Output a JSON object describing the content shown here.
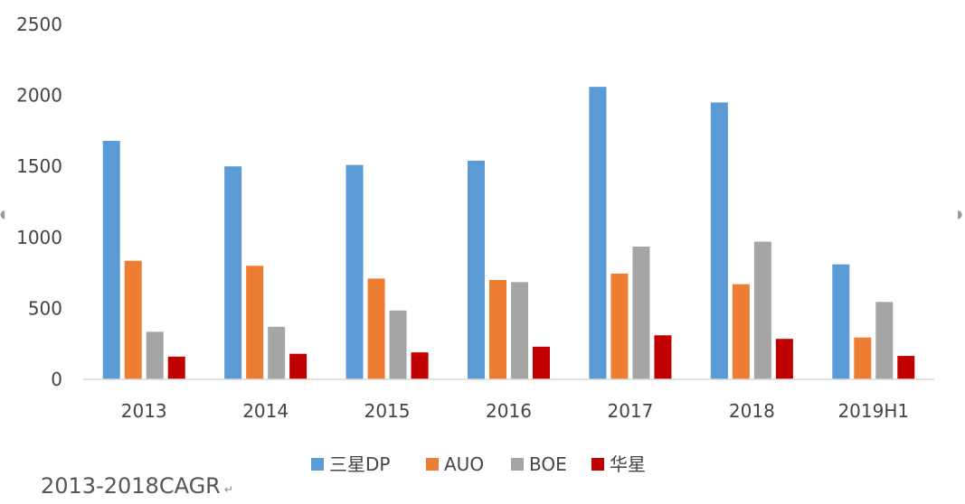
{
  "chart_data": {
    "type": "bar",
    "categories": [
      "2013",
      "2014",
      "2015",
      "2016",
      "2017",
      "2018",
      "2019H1"
    ],
    "series": [
      {
        "name": "三星DP",
        "color": "#5b9bd5",
        "values": [
          1680,
          1500,
          1510,
          1540,
          2060,
          1950,
          810
        ]
      },
      {
        "name": "AUO",
        "color": "#ed7d31",
        "values": [
          835,
          800,
          710,
          700,
          745,
          670,
          295
        ]
      },
      {
        "name": "BOE",
        "color": "#a5a5a5",
        "values": [
          335,
          370,
          485,
          685,
          935,
          970,
          545
        ]
      },
      {
        "name": "华星",
        "color": "#c00000",
        "values": [
          160,
          180,
          190,
          230,
          310,
          285,
          165
        ]
      }
    ],
    "ylim": [
      0,
      2500
    ],
    "yticks": [
      "0",
      "500",
      "1000",
      "1500",
      "2000",
      "2500"
    ],
    "grid": false,
    "legend_position": "bottom"
  },
  "footer": {
    "text": "2013-2018CAGR",
    "mark": "↵"
  }
}
